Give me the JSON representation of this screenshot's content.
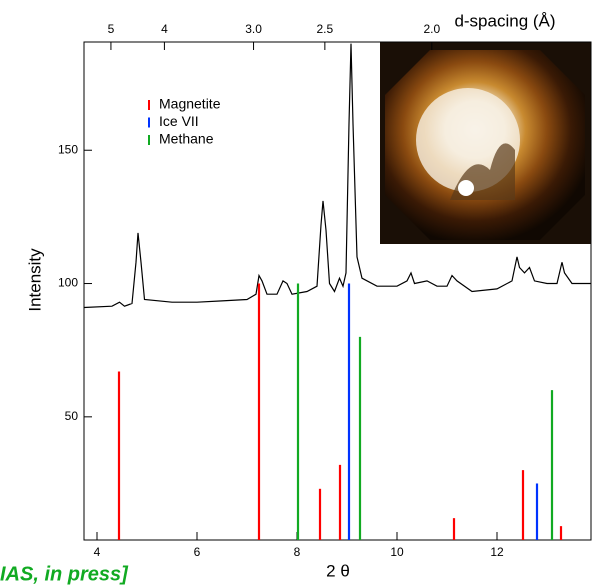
{
  "chart_data": {
    "type": "line",
    "xlabel": "2 θ",
    "ylabel": "Intensity",
    "x2label": "d-spacing (Å)",
    "note": "IAS, in press]",
    "xlim": [
      3.74,
      13.88
    ],
    "ylim": [
      3.8,
      190.6
    ],
    "xticks": [
      4,
      6,
      8,
      10,
      12
    ],
    "yticks": [
      50,
      100,
      150
    ],
    "x2lim": [
      5.72,
      1.542
    ],
    "x2ticks": [
      5,
      4,
      {
        "value": 3,
        "label": "3.0"
      },
      2.5,
      {
        "value": 2,
        "label": "2.0"
      }
    ],
    "legend": "upper left",
    "series": [
      {
        "type": "line",
        "color": "#000000",
        "x": [
          3.74,
          4.3,
          4.45,
          4.55,
          4.7,
          4.78,
          4.82,
          4.88,
          4.95,
          5.5,
          6,
          6.5,
          7,
          7.18,
          7.24,
          7.3,
          7.4,
          7.6,
          7.72,
          7.8,
          7.9,
          8.2,
          8.4,
          8.48,
          8.52,
          8.58,
          8.65,
          8.75,
          8.85,
          8.92,
          8.98,
          9.04,
          9.08,
          9.12,
          9.2,
          9.3,
          9.6,
          10,
          10.2,
          10.28,
          10.35,
          10.6,
          10.8,
          11.0,
          11.1,
          11.2,
          11.5,
          12.0,
          12.3,
          12.4,
          12.45,
          12.55,
          12.65,
          12.75,
          13.0,
          13.2,
          13.3,
          13.35,
          13.5,
          13.88
        ],
        "values": [
          91,
          91.5,
          93,
          91.5,
          92.5,
          108,
          119,
          108,
          94,
          93,
          93,
          93.5,
          94,
          96,
          103,
          101,
          96,
          96,
          101,
          100,
          96,
          97,
          99,
          122,
          131,
          120,
          100,
          97,
          102,
          99,
          104,
          160,
          190,
          160,
          110,
          102,
          99,
          99,
          101,
          104,
          100,
          101,
          99,
          99,
          103,
          101,
          97,
          98,
          101,
          110,
          106,
          104,
          106,
          101,
          100,
          100,
          108,
          104,
          100,
          100
        ]
      },
      {
        "type": "stem",
        "name": "Magnetite",
        "color": "#ff0000",
        "x": [
          4.44,
          7.24,
          8.46,
          8.86,
          11.14,
          12.52,
          13.28
        ],
        "values": [
          67,
          100,
          23,
          32,
          12,
          30,
          9
        ]
      },
      {
        "type": "stem",
        "name": "Ice VII",
        "color": "#0033ff",
        "x": [
          9.04,
          12.8
        ],
        "values": [
          100,
          25
        ]
      },
      {
        "type": "stem",
        "name": "Methane",
        "color": "#11aa22",
        "x": [
          8.02,
          9.26,
          13.1
        ],
        "values": [
          100,
          80,
          60
        ]
      }
    ]
  }
}
